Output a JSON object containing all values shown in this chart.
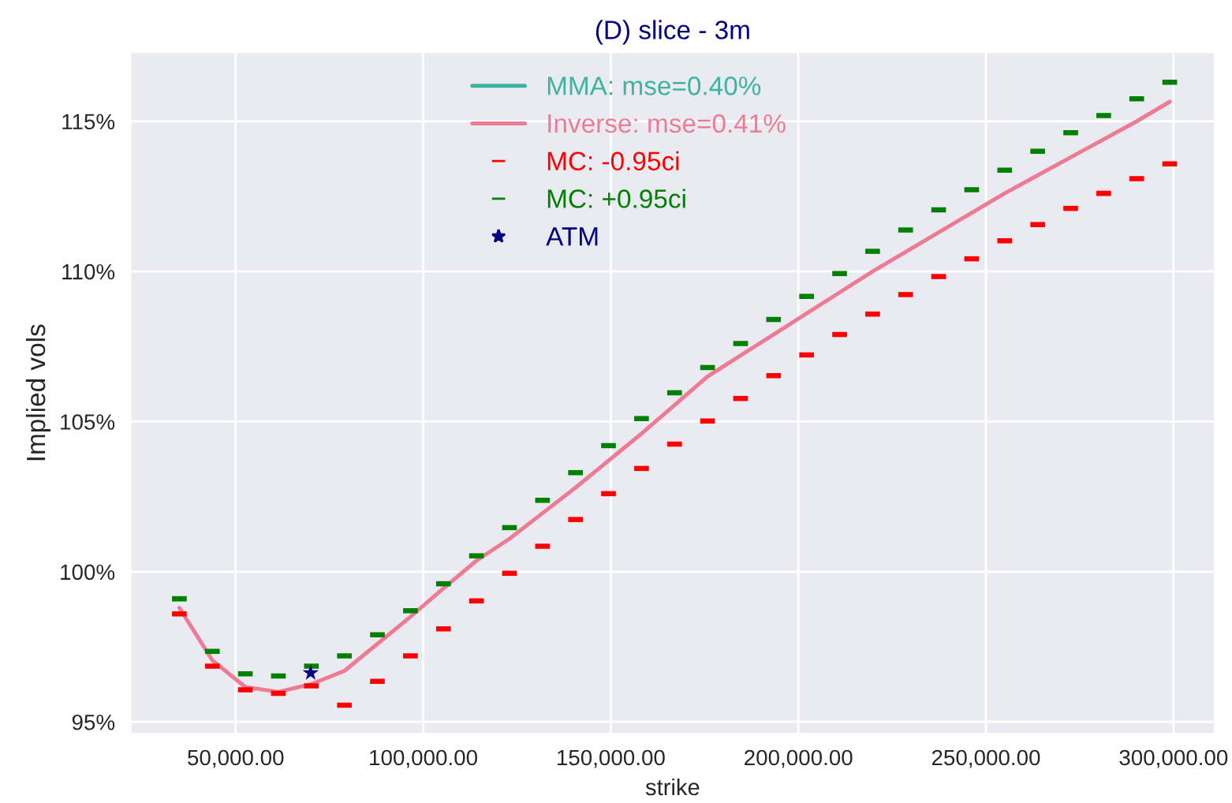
{
  "chart_data": {
    "type": "line",
    "title": "(D) slice - 3m",
    "xlabel": "strike",
    "ylabel": "Implied vols",
    "x": [
      35000,
      43800,
      52600,
      61400,
      70200,
      79000,
      87800,
      96600,
      105400,
      114200,
      123000,
      131800,
      140600,
      149400,
      158200,
      167000,
      175800,
      184600,
      193400,
      202200,
      211000,
      219800,
      228600,
      237400,
      246200,
      255000,
      263800,
      272600,
      281400,
      290200,
      299000
    ],
    "series": [
      {
        "name": "MMA: mse=0.40%",
        "color": "#3cb4a0",
        "values": [
          null,
          null,
          null,
          null,
          null,
          null,
          null,
          null,
          null,
          null,
          null,
          null,
          null,
          null,
          null,
          null,
          null,
          null,
          null,
          null,
          null,
          null,
          null,
          null,
          null,
          null,
          null,
          null,
          null,
          null,
          null
        ]
      },
      {
        "name": "Inverse: mse=0.41%",
        "color": "#ee7b94",
        "values": [
          98.8,
          97.05,
          96.16,
          96.0,
          96.26,
          96.7,
          97.6,
          98.5,
          99.45,
          100.37,
          101.1,
          101.95,
          102.8,
          103.7,
          104.6,
          105.55,
          106.5,
          107.2,
          107.9,
          108.6,
          109.3,
          110.0,
          110.65,
          111.3,
          111.95,
          112.6,
          113.2,
          113.8,
          114.4,
          115.0,
          115.65
        ]
      },
      {
        "name": "MC: -0.95ci",
        "type": "scatter",
        "color": "#ff0000",
        "values": [
          98.6,
          96.86,
          96.07,
          95.95,
          96.2,
          95.56,
          96.35,
          97.2,
          98.1,
          99.03,
          99.95,
          100.85,
          101.74,
          102.6,
          103.44,
          104.25,
          105.02,
          105.77,
          106.53,
          107.22,
          107.9,
          108.58,
          109.23,
          109.83,
          110.42,
          111.02,
          111.56,
          112.1,
          112.6,
          113.09,
          113.58
        ]
      },
      {
        "name": "MC: +0.95ci",
        "type": "scatter",
        "color": "#008000",
        "values": [
          99.1,
          97.35,
          96.6,
          96.53,
          96.86,
          97.2,
          97.9,
          98.7,
          99.6,
          100.53,
          101.47,
          102.38,
          103.3,
          104.2,
          105.1,
          105.96,
          106.8,
          107.6,
          108.4,
          109.17,
          109.93,
          110.67,
          111.38,
          112.05,
          112.72,
          113.37,
          114.0,
          114.62,
          115.19,
          115.75,
          116.3
        ]
      },
      {
        "name": "ATM",
        "type": "scatter",
        "marker": "star",
        "color": "#000080",
        "x": [
          70000
        ],
        "values": [
          96.63
        ]
      }
    ],
    "xlim": [
      22000,
      311000
    ],
    "ylim": [
      94.6,
      117.3
    ],
    "xticks": [
      {
        "value": 50000,
        "label": "50,000.00"
      },
      {
        "value": 100000,
        "label": "100,000.00"
      },
      {
        "value": 150000,
        "label": "150,000.00"
      },
      {
        "value": 200000,
        "label": "200,000.00"
      },
      {
        "value": 250000,
        "label": "250,000.00"
      },
      {
        "value": 300000,
        "label": "300,000.00"
      }
    ],
    "yticks": [
      {
        "value": 95,
        "label": "95%"
      },
      {
        "value": 100,
        "label": "100%"
      },
      {
        "value": 105,
        "label": "105%"
      },
      {
        "value": 110,
        "label": "110%"
      },
      {
        "value": 115,
        "label": "115%"
      }
    ],
    "grid": true,
    "legend": "top"
  }
}
